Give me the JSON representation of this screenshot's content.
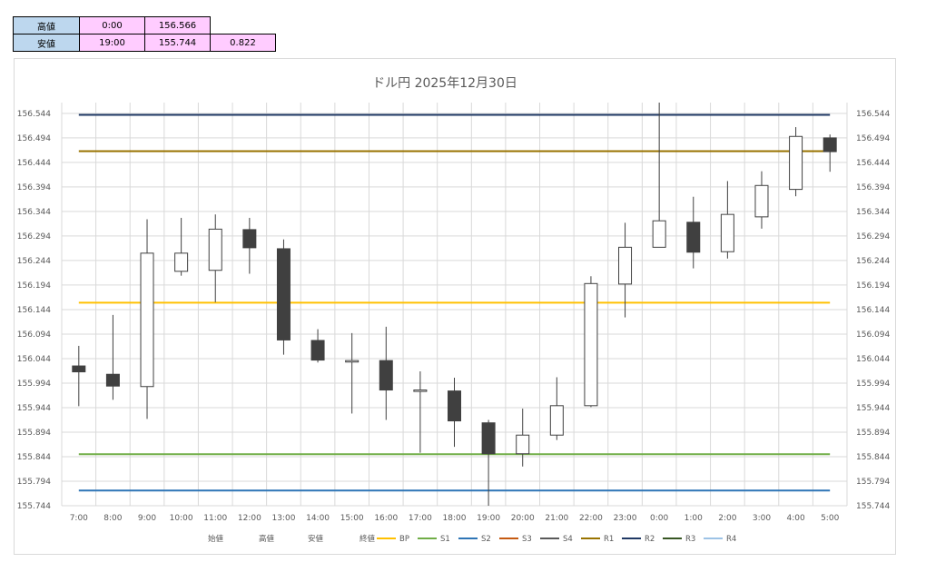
{
  "summary": {
    "high_label": "高値",
    "high_time": "0:00",
    "high_value": "156.566",
    "low_label": "安値",
    "low_time": "19:00",
    "low_value": "155.744",
    "range": "0.822"
  },
  "colors": {
    "BP": "#ffc000",
    "S1": "#70ad47",
    "S2": "#2e75b6",
    "S3": "#c55a11",
    "S4": "#595959",
    "R1": "#997300",
    "R2": "#1f3864",
    "R3": "#375623",
    "R4": "#9dc3e6",
    "bearish": "#404040",
    "bullish": "#ffffff",
    "outline": "#404040"
  },
  "chart_data": {
    "type": "candlestick",
    "title": "ドル円 2025年12月30日",
    "ylim": [
      155.744,
      156.566
    ],
    "yticks": [
      "156.544",
      "156.494",
      "156.444",
      "156.394",
      "156.344",
      "156.294",
      "156.244",
      "156.194",
      "156.144",
      "156.094",
      "156.044",
      "155.994",
      "155.944",
      "155.894",
      "155.844",
      "155.794",
      "155.744"
    ],
    "grid": true,
    "categories": [
      "7:00",
      "8:00",
      "9:00",
      "10:00",
      "11:00",
      "12:00",
      "13:00",
      "14:00",
      "15:00",
      "16:00",
      "17:00",
      "18:00",
      "19:00",
      "20:00",
      "21:00",
      "22:00",
      "23:00",
      "0:00",
      "1:00",
      "2:00",
      "3:00",
      "4:00",
      "5:00"
    ],
    "open": [
      156.029,
      156.012,
      155.987,
      156.222,
      156.224,
      156.307,
      156.268,
      156.081,
      156.037,
      156.04,
      155.977,
      155.978,
      155.913,
      155.85,
      155.888,
      155.948,
      156.196,
      156.271,
      156.322,
      156.262,
      156.333,
      156.389,
      156.494
    ],
    "high": [
      156.07,
      156.133,
      156.328,
      156.331,
      156.338,
      156.331,
      156.287,
      156.104,
      156.096,
      156.109,
      156.018,
      156.005,
      155.919,
      155.942,
      156.006,
      156.212,
      156.321,
      156.566,
      156.374,
      156.406,
      156.426,
      156.516,
      156.501
    ],
    "low": [
      155.947,
      155.96,
      155.921,
      156.213,
      156.159,
      156.217,
      156.052,
      156.036,
      155.932,
      155.919,
      155.852,
      155.864,
      155.744,
      155.824,
      155.878,
      155.945,
      156.128,
      156.271,
      156.228,
      156.248,
      156.309,
      156.375,
      156.425
    ],
    "close": [
      156.017,
      155.988,
      156.259,
      156.259,
      156.308,
      156.27,
      156.082,
      156.041,
      156.04,
      155.98,
      155.98,
      155.917,
      155.85,
      155.888,
      155.948,
      156.197,
      156.271,
      156.325,
      156.261,
      156.338,
      156.397,
      156.497,
      156.466
    ],
    "levels": [
      {
        "name": "BP",
        "value": 156.158
      },
      {
        "name": "R1",
        "value": 156.467
      },
      {
        "name": "R2",
        "value": 156.541
      },
      {
        "name": "S1",
        "value": 155.849
      },
      {
        "name": "S2",
        "value": 155.775
      }
    ],
    "legend": {
      "ohlc": [
        "始値",
        "高値",
        "安値",
        "終値"
      ],
      "lines": [
        "BP",
        "S1",
        "S2",
        "S3",
        "S4",
        "R1",
        "R2",
        "R3",
        "R4"
      ]
    }
  }
}
